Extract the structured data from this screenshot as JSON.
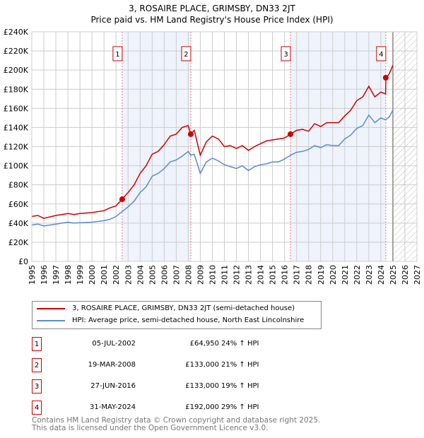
{
  "chart_data": {
    "type": "line",
    "title": "3, ROSAIRE PLACE, GRIMSBY, DN33 2JT",
    "subtitle": "Price paid vs. HM Land Registry's House Price Index (HPI)",
    "xlim": [
      1995,
      2027
    ],
    "ylim": [
      0,
      240000
    ],
    "ytick_labels": [
      "£0",
      "£20K",
      "£40K",
      "£60K",
      "£80K",
      "£100K",
      "£120K",
      "£140K",
      "£160K",
      "£180K",
      "£200K",
      "£220K",
      "£240K"
    ],
    "xtick_labels": [
      "1995",
      "1996",
      "1997",
      "1998",
      "1999",
      "2000",
      "2001",
      "2002",
      "2003",
      "2004",
      "2005",
      "2006",
      "2007",
      "2008",
      "2009",
      "2010",
      "2011",
      "2012",
      "2013",
      "2014",
      "2015",
      "2016",
      "2017",
      "2018",
      "2019",
      "2020",
      "2021",
      "2022",
      "2023",
      "2024",
      "2025",
      "2026",
      "2027"
    ],
    "grid": true,
    "forecast_start": 2025.0,
    "series": [
      {
        "name": "3, ROSAIRE PLACE, GRIMSBY, DN33 2JT (semi-detached house)",
        "color": "#cc0000",
        "x": [
          1995,
          1995.5,
          1996,
          1997,
          1998,
          1998.5,
          1999,
          2000,
          2001,
          2001.5,
          2002,
          2002.5,
          2003,
          2003.5,
          2004,
          2004.5,
          2005,
          2005.5,
          2006,
          2006.5,
          2007,
          2007.5,
          2008,
          2008.2,
          2008.5,
          2009,
          2009.5,
          2010,
          2010.5,
          2011,
          2011.5,
          2012,
          2012.5,
          2013,
          2013.5,
          2014,
          2014.5,
          2015,
          2015.5,
          2016,
          2016.5,
          2017,
          2017.5,
          2018,
          2018.5,
          2019,
          2019.5,
          2020,
          2020.5,
          2021,
          2021.5,
          2022,
          2022.5,
          2023,
          2023.5,
          2024,
          2024.4,
          2024.42,
          2024.7,
          2025
        ],
        "y": [
          47000,
          48000,
          45000,
          48000,
          50000,
          49000,
          50000,
          51000,
          53000,
          56000,
          58000,
          64950,
          72000,
          80000,
          92000,
          100000,
          112000,
          115000,
          122000,
          131000,
          133000,
          140000,
          142000,
          133000,
          137000,
          111000,
          125000,
          131000,
          128000,
          120000,
          121000,
          118000,
          121000,
          116000,
          120000,
          123000,
          126000,
          127000,
          128000,
          129000,
          133000,
          137000,
          138000,
          136000,
          144000,
          141000,
          145000,
          145000,
          145000,
          152000,
          158000,
          168000,
          172000,
          183000,
          172000,
          177000,
          175000,
          192000,
          196000,
          205000
        ]
      },
      {
        "name": "HPI: Average price, semi-detached house, North East Lincolnshire",
        "color": "#5b8bd0",
        "x": [
          1995,
          1995.5,
          1996,
          1997,
          1998,
          1998.5,
          1999,
          2000,
          2001,
          2001.5,
          2002,
          2002.5,
          2003,
          2003.5,
          2004,
          2004.5,
          2005,
          2005.5,
          2006,
          2006.5,
          2007,
          2007.5,
          2008,
          2008.2,
          2008.5,
          2009,
          2009.5,
          2010,
          2010.5,
          2011,
          2011.5,
          2012,
          2012.5,
          2013,
          2013.5,
          2014,
          2014.5,
          2015,
          2015.5,
          2016,
          2016.5,
          2017,
          2017.5,
          2018,
          2018.5,
          2019,
          2019.5,
          2020,
          2020.5,
          2021,
          2021.5,
          2022,
          2022.5,
          2023,
          2023.5,
          2024,
          2024.4,
          2024.7,
          2025
        ],
        "y": [
          38000,
          39000,
          37000,
          39000,
          41000,
          40000,
          40500,
          41000,
          42500,
          44000,
          47000,
          52000,
          57000,
          63000,
          72000,
          78000,
          89000,
          92000,
          97000,
          104000,
          106000,
          110000,
          115000,
          111000,
          112000,
          92000,
          104000,
          108000,
          105000,
          101000,
          99000,
          97000,
          100000,
          95000,
          99000,
          101000,
          102000,
          104000,
          104000,
          107000,
          111000,
          114000,
          115000,
          117000,
          121000,
          119000,
          122000,
          121000,
          121000,
          128000,
          132000,
          139000,
          142000,
          153000,
          145000,
          150000,
          148000,
          151000,
          158000
        ]
      }
    ],
    "sales": [
      {
        "label": "1",
        "x": 2002.51,
        "y": 64950,
        "date": "05-JUL-2002",
        "price": "£64,950",
        "hpi": "24% ↑ HPI"
      },
      {
        "label": "2",
        "x": 2008.21,
        "y": 133000,
        "date": "19-MAR-2008",
        "price": "£133,000",
        "hpi": "21% ↑ HPI"
      },
      {
        "label": "3",
        "x": 2016.49,
        "y": 133000,
        "date": "27-JUN-2016",
        "price": "£133,000",
        "hpi": "19% ↑ HPI"
      },
      {
        "label": "4",
        "x": 2024.41,
        "y": 192000,
        "date": "31-MAY-2024",
        "price": "£192,000",
        "hpi": "29% ↑ HPI"
      }
    ],
    "shaded_ranges": [
      [
        2002.51,
        2008.21
      ],
      [
        2016.49,
        2024.41
      ]
    ]
  },
  "footer": {
    "line1": "Contains HM Land Registry data © Crown copyright and database right 2025.",
    "line2": "This data is licensed under the Open Government Licence v3.0."
  }
}
